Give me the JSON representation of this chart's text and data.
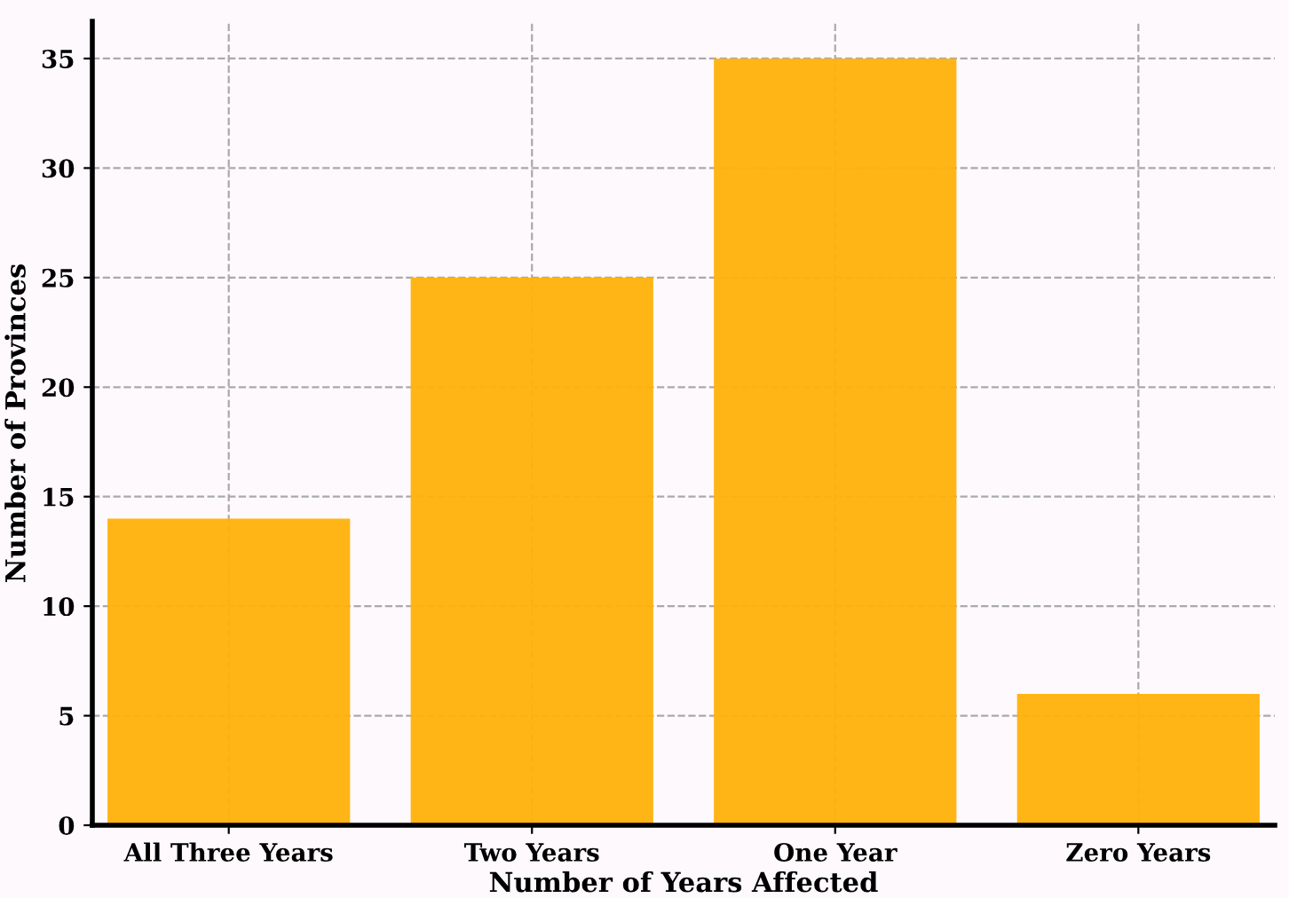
{
  "chart_data": {
    "type": "bar",
    "xlabel": "Number of Years Affected",
    "ylabel": "Number of Provinces",
    "categories": [
      "All Three Years",
      "Two Years",
      "One Year",
      "Zero Years"
    ],
    "values": [
      14,
      25,
      35,
      6
    ],
    "color": "#ffb10a",
    "ylim": [
      0,
      36.7
    ],
    "yticks": [
      0,
      5,
      10,
      15,
      20,
      25,
      30,
      35
    ],
    "grid": true
  }
}
